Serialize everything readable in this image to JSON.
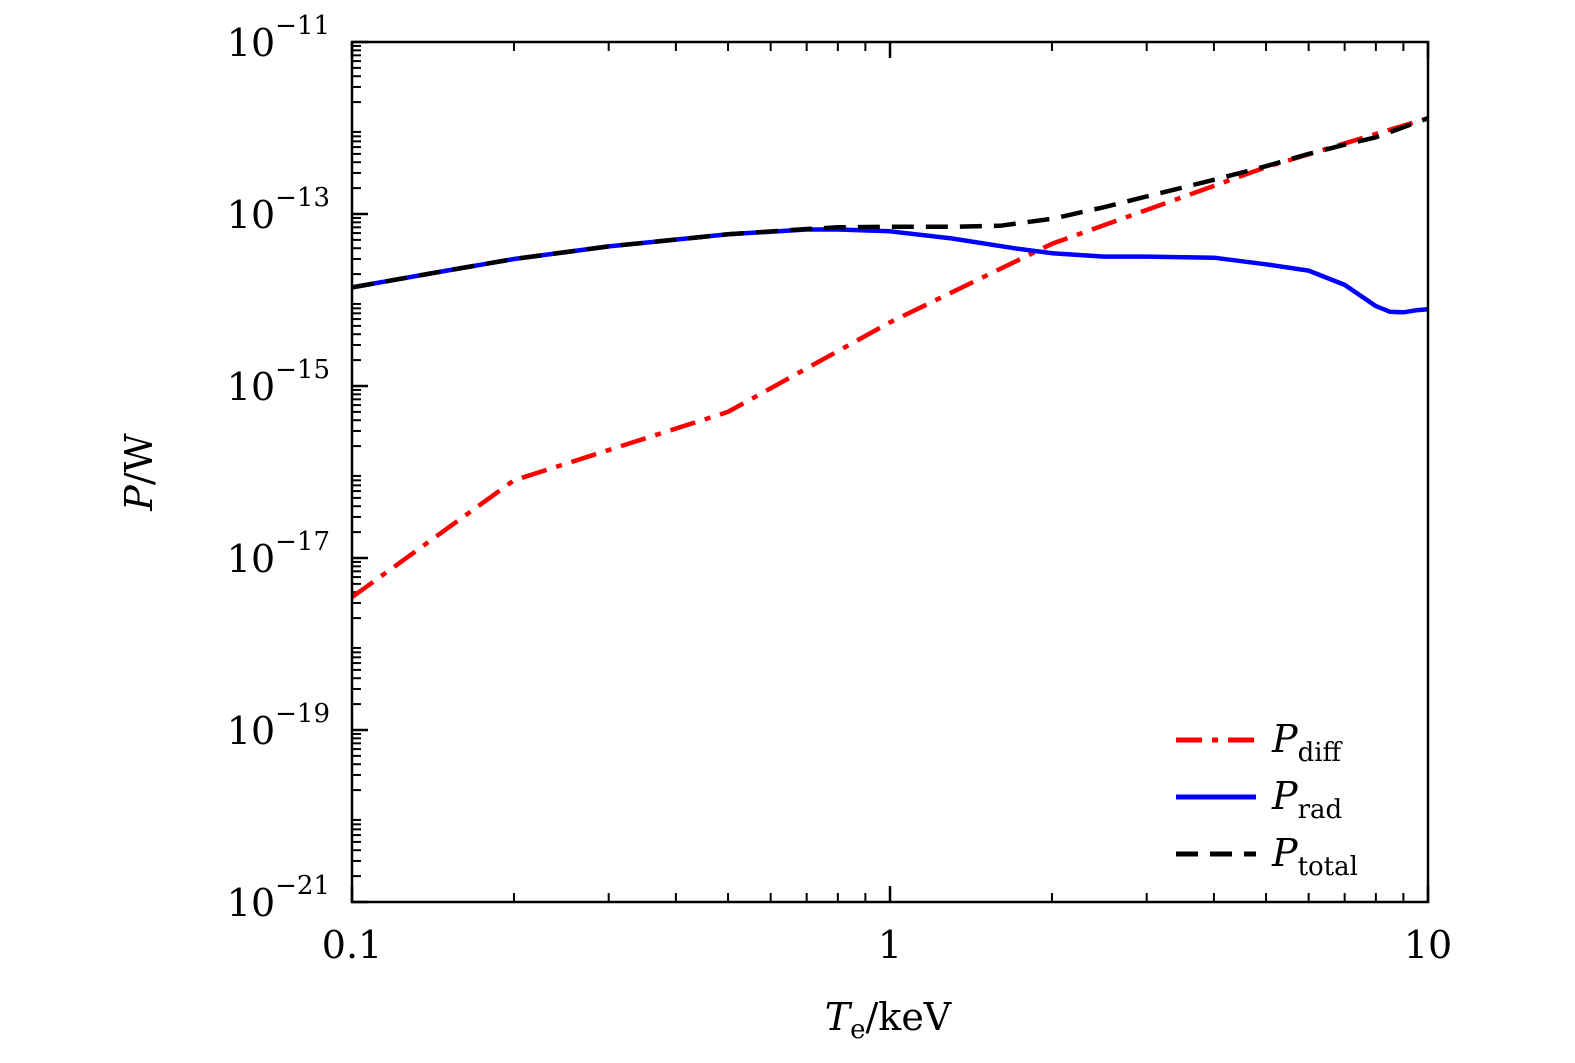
{
  "chart_data": {
    "type": "line",
    "xscale": "log",
    "yscale": "log",
    "xlim": [
      0.1,
      10
    ],
    "ylim": [
      1e-21,
      1e-11
    ],
    "xlabel": {
      "main": "T",
      "sub": "e",
      "unit": "/keV"
    },
    "ylabel": {
      "main": "P",
      "unit": "/W"
    },
    "x_ticks": [
      {
        "value": 0.1,
        "label": "0.1"
      },
      {
        "value": 1,
        "label": "1"
      },
      {
        "value": 10,
        "label": "10"
      }
    ],
    "y_ticks": [
      {
        "value": 1e-21,
        "base": "10",
        "exp": "−21"
      },
      {
        "value": 1e-19,
        "base": "10",
        "exp": "−19"
      },
      {
        "value": 1e-17,
        "base": "10",
        "exp": "−17"
      },
      {
        "value": 1e-15,
        "base": "10",
        "exp": "−15"
      },
      {
        "value": 1e-13,
        "base": "10",
        "exp": "−13"
      },
      {
        "value": 1e-11,
        "base": "10",
        "exp": "−11"
      }
    ],
    "legend_position": "bottom-right",
    "series": [
      {
        "key": "diff",
        "name_main": "P",
        "name_sub": "diff",
        "color": "#ff0000",
        "style": "dashdot",
        "x": [
          0.1,
          0.2,
          0.5,
          1,
          2,
          5,
          10
        ],
        "y": [
          3.5e-18,
          8e-17,
          5e-16,
          5.5e-15,
          4.5e-14,
          3.5e-13,
          1.3e-12
        ]
      },
      {
        "key": "rad",
        "name_main": "P",
        "name_sub": "rad",
        "color": "#0000ff",
        "style": "solid",
        "x": [
          0.1,
          0.15,
          0.2,
          0.3,
          0.5,
          0.7,
          0.8,
          1.0,
          1.3,
          1.7,
          2.0,
          2.5,
          3.0,
          4.0,
          5.0,
          6.0,
          7.0,
          8.0,
          8.5,
          9.0,
          9.5,
          10
        ],
        "y": [
          1.4e-14,
          2.2e-14,
          3e-14,
          4.2e-14,
          5.8e-14,
          6.6e-14,
          6.6e-14,
          6.3e-14,
          5.2e-14,
          4e-14,
          3.5e-14,
          3.2e-14,
          3.2e-14,
          3.1e-14,
          2.6e-14,
          2.2e-14,
          1.5e-14,
          8.5e-15,
          7.3e-15,
          7.2e-15,
          7.6e-15,
          7.8e-15
        ]
      },
      {
        "key": "total",
        "name_main": "P",
        "name_sub": "total",
        "color": "#000000",
        "style": "dashed",
        "x": [
          0.1,
          0.15,
          0.2,
          0.3,
          0.5,
          0.7,
          0.8,
          1.0,
          1.3,
          1.6,
          2.0,
          2.5,
          3.0,
          4.0,
          5.0,
          6.0,
          7.0,
          8.0,
          10
        ],
        "y": [
          1.4e-14,
          2.2e-14,
          3e-14,
          4.2e-14,
          5.8e-14,
          6.7e-14,
          7e-14,
          7.1e-14,
          7.1e-14,
          7.3e-14,
          8.8e-14,
          1.2e-13,
          1.6e-13,
          2.5e-13,
          3.6e-13,
          5e-13,
          6.4e-13,
          7.8e-13,
          1.3e-12
        ]
      }
    ]
  }
}
